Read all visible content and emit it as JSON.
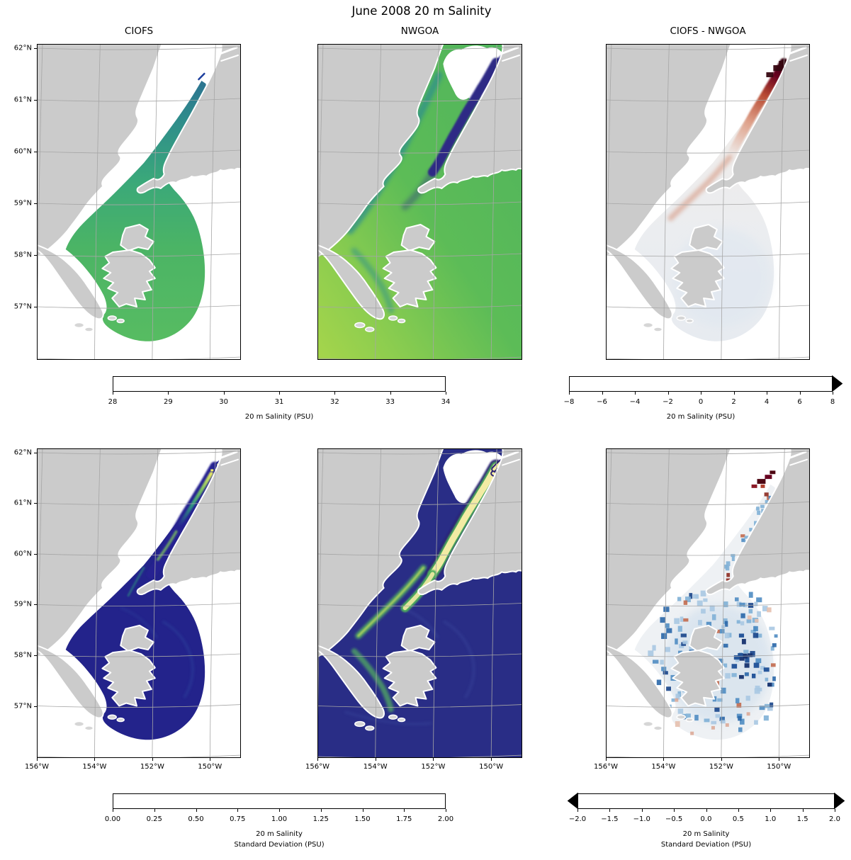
{
  "figure_title": "June 2008 20 m Salinity",
  "panels": [
    {
      "id": "ciofs-salinity",
      "title": "CIOFS",
      "kind": "ciofs_salinity"
    },
    {
      "id": "nwgoa-salinity",
      "title": "NWGOA",
      "kind": "nwgoa_salinity"
    },
    {
      "id": "diff-salinity",
      "title": "CIOFS - NWGOA",
      "kind": "diff_salinity"
    },
    {
      "id": "ciofs-std",
      "title": "",
      "kind": "ciofs_std"
    },
    {
      "id": "nwgoa-std",
      "title": "",
      "kind": "nwgoa_std"
    },
    {
      "id": "diff-std",
      "title": "",
      "kind": "diff_std"
    }
  ],
  "axes": {
    "lat_ticks": [
      "62°N",
      "61°N",
      "60°N",
      "59°N",
      "58°N",
      "57°N"
    ],
    "lon_ticks": [
      "156°W",
      "154°W",
      "152°W",
      "150°W"
    ]
  },
  "colorbars": [
    {
      "id": "salinity",
      "cmap": "haline",
      "extend": "neither",
      "ticks": [
        "28",
        "29",
        "30",
        "31",
        "32",
        "33",
        "34"
      ],
      "label_lines": [
        "20 m Salinity (PSU)"
      ]
    },
    {
      "id": "salinity-diff",
      "cmap": "rdbu_r",
      "extend": "max",
      "ticks": [
        "−8",
        "−6",
        "−4",
        "−2",
        "0",
        "2",
        "4",
        "6",
        "8"
      ],
      "label_lines": [
        "20 m Salinity (PSU)"
      ]
    },
    {
      "id": "std",
      "cmap": "haline",
      "extend": "neither",
      "ticks": [
        "0.00",
        "0.25",
        "0.50",
        "0.75",
        "1.00",
        "1.25",
        "1.50",
        "1.75",
        "2.00"
      ],
      "label_lines": [
        "20 m Salinity",
        "Standard Deviation (PSU)"
      ]
    },
    {
      "id": "std-diff",
      "cmap": "rdbu_r",
      "extend": "both",
      "ticks": [
        "−2.0",
        "−1.5",
        "−1.0",
        "−0.5",
        "0.0",
        "0.5",
        "1.0",
        "1.5",
        "2.0"
      ],
      "label_lines": [
        "20 m Salinity",
        "Standard Deviation (PSU)"
      ]
    }
  ],
  "colormaps": {
    "haline": [
      [
        "#2a1a72",
        0
      ],
      [
        "#2c3e9e",
        11
      ],
      [
        "#2a5da8",
        22
      ],
      [
        "#1f80a7",
        33
      ],
      [
        "#1f9793",
        50
      ],
      [
        "#32a97d",
        58
      ],
      [
        "#55bb63",
        67
      ],
      [
        "#8bcc52",
        78
      ],
      [
        "#c6dd51",
        89
      ],
      [
        "#f9ec87",
        100
      ]
    ],
    "rdbu_r": [
      [
        "#053061",
        0
      ],
      [
        "#2166ac",
        12.5
      ],
      [
        "#4393c3",
        25
      ],
      [
        "#92c5de",
        37.5
      ],
      [
        "#d1e5f0",
        44
      ],
      [
        "#f7f7f7",
        50
      ],
      [
        "#fddbc7",
        56
      ],
      [
        "#f4a582",
        62.5
      ],
      [
        "#d6604d",
        75
      ],
      [
        "#b2182b",
        87.5
      ],
      [
        "#67001f",
        100
      ]
    ]
  },
  "map_styles": {
    "common": {
      "land": "#cbcbcb",
      "coast": "#ffffff",
      "grid": "#a6a6a6",
      "frame": "#000000",
      "flats": "#ffffff",
      "islet": "#d6d6d6"
    },
    "ciofs_salinity": {
      "fan_top": "#2b6e92",
      "fan_mid1": "#2f8d8b",
      "fan_mid2": "#3aa87a",
      "fan_mid3": "#4bb465",
      "fan_bot": "#57bc62",
      "navy_mark": "#1d3f9e"
    },
    "nwgoa_salinity": {
      "ocean_top": "#4fb35d",
      "ocean_mid": "#5cbc57",
      "ocean_low": "#8ccd4f",
      "ocean_corner": "#a6d54b",
      "coast_band": "#2d8f8c",
      "channel": "#2d2c85"
    },
    "diff_salinity": {
      "fan": "#ebedf0",
      "fan_top": "#f0e7e2",
      "fan_bot": "#e7ebf0",
      "chan_top": "#360610",
      "chan_hi": "#67001f",
      "chan_mid": "#b84a32",
      "chan_low": "#dfa28b",
      "side_band": "#cd7a5c"
    },
    "ciofs_std": {
      "fan": "#23238b",
      "channel": "#252491",
      "streak_hi": "#edee66",
      "streak_mid": "#7fc45f",
      "streak_low": "#2f9a80",
      "dot": "#f0ee6a",
      "swirl": "#2d49a0"
    },
    "nwgoa_std": {
      "ocean": "#292d86",
      "swirl": "#3a4a9e",
      "chan_edge": "#2b2173",
      "chan_green": "#4fae5c",
      "chan_core": "#f2eba4",
      "coast_green": "#55b45f",
      "coast_lime": "#cede5e"
    },
    "diff_std": {
      "fan": "#eef1f4",
      "wash": "#c9daea",
      "blues": [
        "#a8c8e2",
        "#7fb0d6",
        "#4f8cc2",
        "#2a67a8",
        "#17448a"
      ],
      "reds": [
        "#e6c0ae",
        "#c26a4e",
        "#a93226"
      ],
      "maroon": "#4d0612",
      "dark_navy": "#16316e",
      "navy2": "#1d4f96",
      "pink": "#d9a18c"
    }
  },
  "chart_data": {
    "type": "heatmap",
    "title": "June 2008 20 m Salinity",
    "layout": "2 rows × 3 columns of geographic maps (Cook Inlet / northwest Gulf of Alaska), each row sharing one sequential and one diverging colorbar",
    "lat_ticks": [
      "62°N",
      "61°N",
      "60°N",
      "59°N",
      "58°N",
      "57°N"
    ],
    "lon_ticks": [
      "156°W",
      "154°W",
      "152°W",
      "150°W"
    ],
    "panels": [
      {
        "position": "top-left",
        "title": "CIOFS",
        "quantity": "20 m Salinity (PSU)",
        "vmin": 28,
        "vmax": 34,
        "summary": "CIOFS model fan-shaped domain only; salinity ≈29–30 (teal) in upper Cook Inlet grading to ≈31.5–32 (green) over the lower inlet, Shelikof Strait and shelf; ocean outside domain blank"
      },
      {
        "position": "top-middle",
        "title": "NWGOA",
        "quantity": "20 m Salinity (PSU)",
        "vmin": 28,
        "vmax": 34,
        "summary": "Full domain covered; ≤28 (dark navy) through upper and middle Cook Inlet, ≈31–32 (green) on the shelf, ≈32.5–33 (yellow-green) offshore to the southwest"
      },
      {
        "position": "top-right",
        "title": "CIOFS - NWGOA",
        "quantity": "Δ 20 m Salinity (PSU)",
        "vmin": -8,
        "vmax": 8,
        "extend": "max",
        "summary": "Difference ≈0 (white) over most of the shared fan domain; +2 to +6 (red) along mid Cook Inlet and > +8 (dark maroon) in the uppermost inlet where CIOFS is saltier"
      },
      {
        "position": "bottom-left",
        "title": "CIOFS",
        "quantity": "20 m Salinity Standard Deviation (PSU)",
        "vmin": 0,
        "vmax": 2,
        "summary": "Std ≈0–0.25 (dark navy) over nearly all of the CIOFS domain; ≈1–2 (green to yellow) streaks in the upper inlet, forks and Kachemak area"
      },
      {
        "position": "bottom-middle",
        "title": "NWGOA",
        "quantity": "20 m Salinity Standard Deviation (PSU)",
        "vmin": 0,
        "vmax": 2,
        "summary": "Std ≥2 (pale yellow) along the entire Cook Inlet channel with green fringes and navy shoreline edges; ≈0.1–0.5 (blue) with eddies over the open gulf"
      },
      {
        "position": "bottom-right",
        "title": "CIOFS - NWGOA",
        "quantity": "Δ 20 m Salinity Standard Deviation (PSU)",
        "vmin": -2,
        "vmax": 2,
        "extend": "both",
        "summary": "Mostly negative (blue speckle, −0.5 to −2) south of Kachemak Bay and around Kodiak; positive cluster (+1 to +2, dark red) in the uppermost inlet; near 0 (white) elsewhere"
      }
    ],
    "colorbars": [
      {
        "row": "top",
        "applies_to": [
          "CIOFS",
          "NWGOA"
        ],
        "label": "20 m Salinity (PSU)",
        "range": [
          28,
          34
        ],
        "ticks": [
          28,
          29,
          30,
          31,
          32,
          33,
          34
        ],
        "colormap": "sequential indigo–blue–teal–green–yellow (haline-like)",
        "extend": "neither"
      },
      {
        "row": "top",
        "applies_to": [
          "CIOFS - NWGOA"
        ],
        "label": "20 m Salinity (PSU)",
        "range": [
          -8,
          8
        ],
        "ticks": [
          -8,
          -6,
          -4,
          -2,
          0,
          2,
          4,
          6,
          8
        ],
        "colormap": "diverging blue–white–red (RdBu reversed)",
        "extend": "max"
      },
      {
        "row": "bottom",
        "applies_to": [
          "CIOFS",
          "NWGOA"
        ],
        "label": "20 m Salinity Standard Deviation (PSU)",
        "range": [
          0,
          2
        ],
        "ticks": [
          0.0,
          0.25,
          0.5,
          0.75,
          1.0,
          1.25,
          1.5,
          1.75,
          2.0
        ],
        "colormap": "sequential indigo–blue–teal–green–yellow (haline-like)",
        "extend": "neither"
      },
      {
        "row": "bottom",
        "applies_to": [
          "CIOFS - NWGOA"
        ],
        "label": "20 m Salinity Standard Deviation (PSU)",
        "range": [
          -2,
          2
        ],
        "ticks": [
          -2.0,
          -1.5,
          -1.0,
          -0.5,
          0.0,
          0.5,
          1.0,
          1.5,
          2.0
        ],
        "colormap": "diverging blue–white–red (RdBu reversed)",
        "extend": "both"
      }
    ]
  }
}
